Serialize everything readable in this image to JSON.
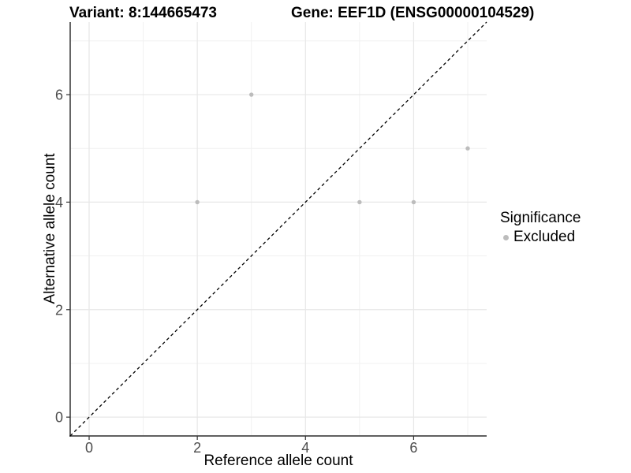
{
  "figure": {
    "title_left": "Variant: 8:144665473",
    "title_right": "Gene: EEF1D (ENSG00000104529)",
    "x_axis_label": "Reference allele count",
    "y_axis_label": "Alternative allele count",
    "legend": {
      "title": "Significance",
      "items": [
        {
          "label": "Excluded",
          "color": "#bcbcbc"
        }
      ]
    }
  },
  "chart_data": {
    "type": "scatter",
    "title": "Variant: 8:144665473  /  Gene: EEF1D (ENSG00000104529)",
    "xlabel": "Reference allele count",
    "ylabel": "Alternative allele count",
    "xlim": [
      -0.35,
      7.35
    ],
    "ylim": [
      -0.35,
      7.35
    ],
    "x_major_ticks": [
      0,
      2,
      4,
      6
    ],
    "x_minor_ticks": [
      1,
      3,
      5,
      7
    ],
    "y_major_ticks": [
      0,
      2,
      4,
      6
    ],
    "y_minor_ticks": [
      1,
      3,
      5,
      7
    ],
    "grid": true,
    "legend_position": "right",
    "series": [
      {
        "name": "Excluded",
        "color": "#bcbcbc",
        "points": [
          [
            2,
            4
          ],
          [
            3,
            6
          ],
          [
            5,
            4
          ],
          [
            6,
            4
          ],
          [
            7,
            5
          ]
        ]
      }
    ],
    "reference_line": {
      "type": "identity",
      "style": "dashed",
      "color": "#000000"
    },
    "style": {
      "grid_major": "#e7e7e7",
      "grid_minor": "#f1f1f1",
      "axis_line": "#4a4a4a",
      "tick_mark": "#333333",
      "tick_label": "#4d4d4d",
      "point_color": "#bcbcbc",
      "background": "#ffffff"
    }
  }
}
